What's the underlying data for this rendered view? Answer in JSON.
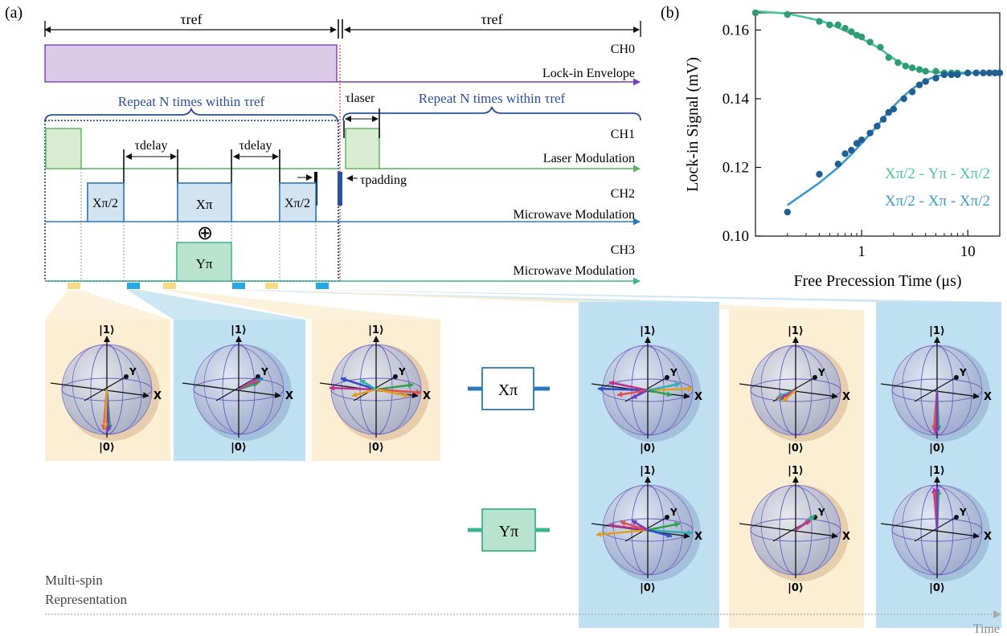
{
  "panel_a_label": "(a)",
  "panel_b_label": "(b)",
  "timing": {
    "tau_ref_left": "τref",
    "tau_ref_right": "τref",
    "ch0": "CH0",
    "ch0_desc": "Lock-in Envelope",
    "repeat_left": "Repeat N times within τref",
    "repeat_right": "Repeat N times within τref",
    "tau_laser": "τlaser",
    "ch1": "CH1",
    "ch1_desc": "Laser Modulation",
    "tau_delay_1": "τdelay",
    "tau_delay_2": "τdelay",
    "tau_padding": "τpadding",
    "ch2": "CH2",
    "ch2_desc": "Microwave Modulation",
    "ch3": "CH3",
    "ch3_desc": "Microwave Modulation",
    "pulse_x_half_1": "Xπ/2",
    "pulse_x_pi": "Xπ",
    "pulse_x_half_2": "Xπ/2",
    "pulse_y_pi": "Yπ",
    "xor_symbol": "⊕"
  },
  "spheres": {
    "ket1": "|1⟩",
    "ket0": "|0⟩",
    "axis_x": "X",
    "axis_y": "Y"
  },
  "gates": {
    "x_gate": "Xπ",
    "y_gate": "Yπ"
  },
  "multi_spin_line1": "Multi-spin",
  "multi_spin_line2": "Representation",
  "time_label": "Time",
  "colors": {
    "teal": "#3cb48c",
    "blue": "#2a78b8",
    "purple": "#7a3fb0",
    "purple_fill": "#dccbe8",
    "green": "#56b45a",
    "green_fill": "#d8ecd2",
    "cyan_fill": "#d2e4f2",
    "ypi_fill": "#b9e3cf",
    "bg_yellow": "#fbeed2",
    "bg_blue": "#bfe0f1",
    "navy": "#2b4f9c"
  },
  "chart_data": {
    "type": "scatter",
    "xlabel": "Free Precession Time (μs)",
    "ylabel": "Lock-in Signal (mV)",
    "xscale": "log",
    "xlim": [
      0.1,
      20
    ],
    "ylim": [
      0.1,
      0.165
    ],
    "x_ticks": [
      "1",
      "10"
    ],
    "y_ticks": [
      "0.10",
      "0.12",
      "0.14",
      "0.16"
    ],
    "legend": [
      "Xπ/2 - Yπ - Xπ/2",
      "Xπ/2 - Xπ - Xπ/2"
    ],
    "legend_placement": "bottom-right",
    "series": [
      {
        "name": "Xπ/2 - Yπ - Xπ/2",
        "color": "#2e9b78",
        "fit_color": "#4cc49a",
        "x": [
          0.1,
          0.2,
          0.4,
          0.5,
          0.6,
          0.7,
          0.8,
          0.9,
          1.0,
          1.2,
          1.5,
          1.8,
          2.2,
          2.6,
          3.0,
          3.5,
          4.0,
          5.0,
          6.0,
          7.0,
          8.0,
          10.0,
          12.0,
          14.0,
          16.0,
          18.0,
          20.0
        ],
        "y": [
          0.165,
          0.1645,
          0.1625,
          0.1615,
          0.1615,
          0.1605,
          0.1595,
          0.1585,
          0.158,
          0.1565,
          0.155,
          0.152,
          0.1505,
          0.1495,
          0.149,
          0.1485,
          0.148,
          0.148,
          0.1475,
          0.1475,
          0.1475,
          0.1475,
          0.1475,
          0.1475,
          0.1475,
          0.1475,
          0.1475
        ],
        "fit_y": [
          0.1655,
          0.1648,
          0.1628,
          0.1618,
          0.1607,
          0.1598,
          0.159,
          0.1583,
          0.1575,
          0.1562,
          0.1545,
          0.1527,
          0.1508,
          0.1497,
          0.1489,
          0.1483,
          0.148,
          0.1477,
          0.1476,
          0.1476,
          0.1476,
          0.1476,
          0.1476,
          0.1476,
          0.1476,
          0.1476,
          0.1476
        ]
      },
      {
        "name": "Xπ/2 - Xπ - Xπ/2",
        "color": "#1f5f92",
        "fit_color": "#3a9ad0",
        "x": [
          0.2,
          0.4,
          0.6,
          0.7,
          0.8,
          0.9,
          1.0,
          1.2,
          1.4,
          1.6,
          1.8,
          2.0,
          2.5,
          3.0,
          3.5,
          4.0,
          5.0,
          6.0,
          7.0,
          8.0,
          10.0,
          12.0,
          14.0,
          16.0,
          18.0,
          20.0
        ],
        "y": [
          0.107,
          0.118,
          0.121,
          0.124,
          0.125,
          0.127,
          0.128,
          0.13,
          0.132,
          0.134,
          0.136,
          0.137,
          0.14,
          0.142,
          0.144,
          0.145,
          0.146,
          0.147,
          0.147,
          0.147,
          0.1475,
          0.1475,
          0.1475,
          0.1475,
          0.1475,
          0.1475
        ],
        "fit_y": [
          0.109,
          0.1155,
          0.12,
          0.122,
          0.1238,
          0.1255,
          0.127,
          0.1298,
          0.132,
          0.1343,
          0.1362,
          0.1378,
          0.1408,
          0.1428,
          0.1443,
          0.1453,
          0.1465,
          0.147,
          0.1472,
          0.1473,
          0.1474,
          0.1475,
          0.1475,
          0.1475,
          0.1475,
          0.1475
        ]
      }
    ]
  }
}
